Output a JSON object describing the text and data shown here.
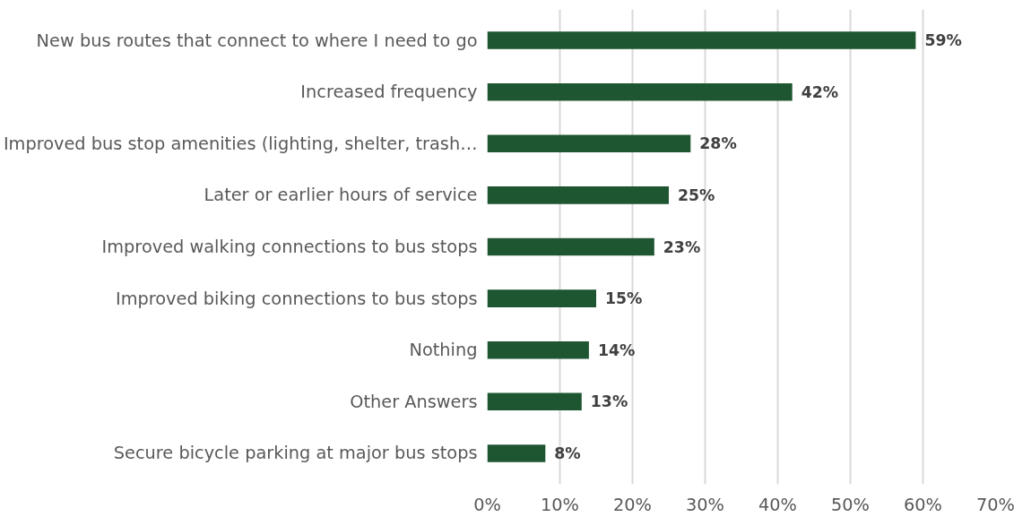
{
  "chart_data": {
    "type": "bar",
    "orientation": "horizontal",
    "categories": [
      "New bus routes that connect to where I need to go",
      "Increased frequency",
      "Improved bus stop amenities (lighting, shelter, trash…",
      "Later or earlier hours of service",
      "Improved walking connections to bus stops",
      "Improved biking connections to bus stops",
      "Nothing",
      "Other Answers",
      "Secure bicycle parking at major bus stops"
    ],
    "values": [
      59,
      42,
      28,
      25,
      23,
      15,
      14,
      13,
      8
    ],
    "value_labels": [
      "59%",
      "42%",
      "28%",
      "25%",
      "23%",
      "15%",
      "14%",
      "13%",
      "8%"
    ],
    "color": "#1e5631",
    "xlim": [
      0,
      70
    ],
    "xticks": [
      {
        "value": 0,
        "label": "0%"
      },
      {
        "value": 10,
        "label": "10%"
      },
      {
        "value": 20,
        "label": "20%"
      },
      {
        "value": 30,
        "label": "30%"
      },
      {
        "value": 40,
        "label": "40%"
      },
      {
        "value": 50,
        "label": "50%"
      },
      {
        "value": 60,
        "label": "60%"
      },
      {
        "value": 70,
        "label": "70%"
      }
    ],
    "grid": "x"
  }
}
